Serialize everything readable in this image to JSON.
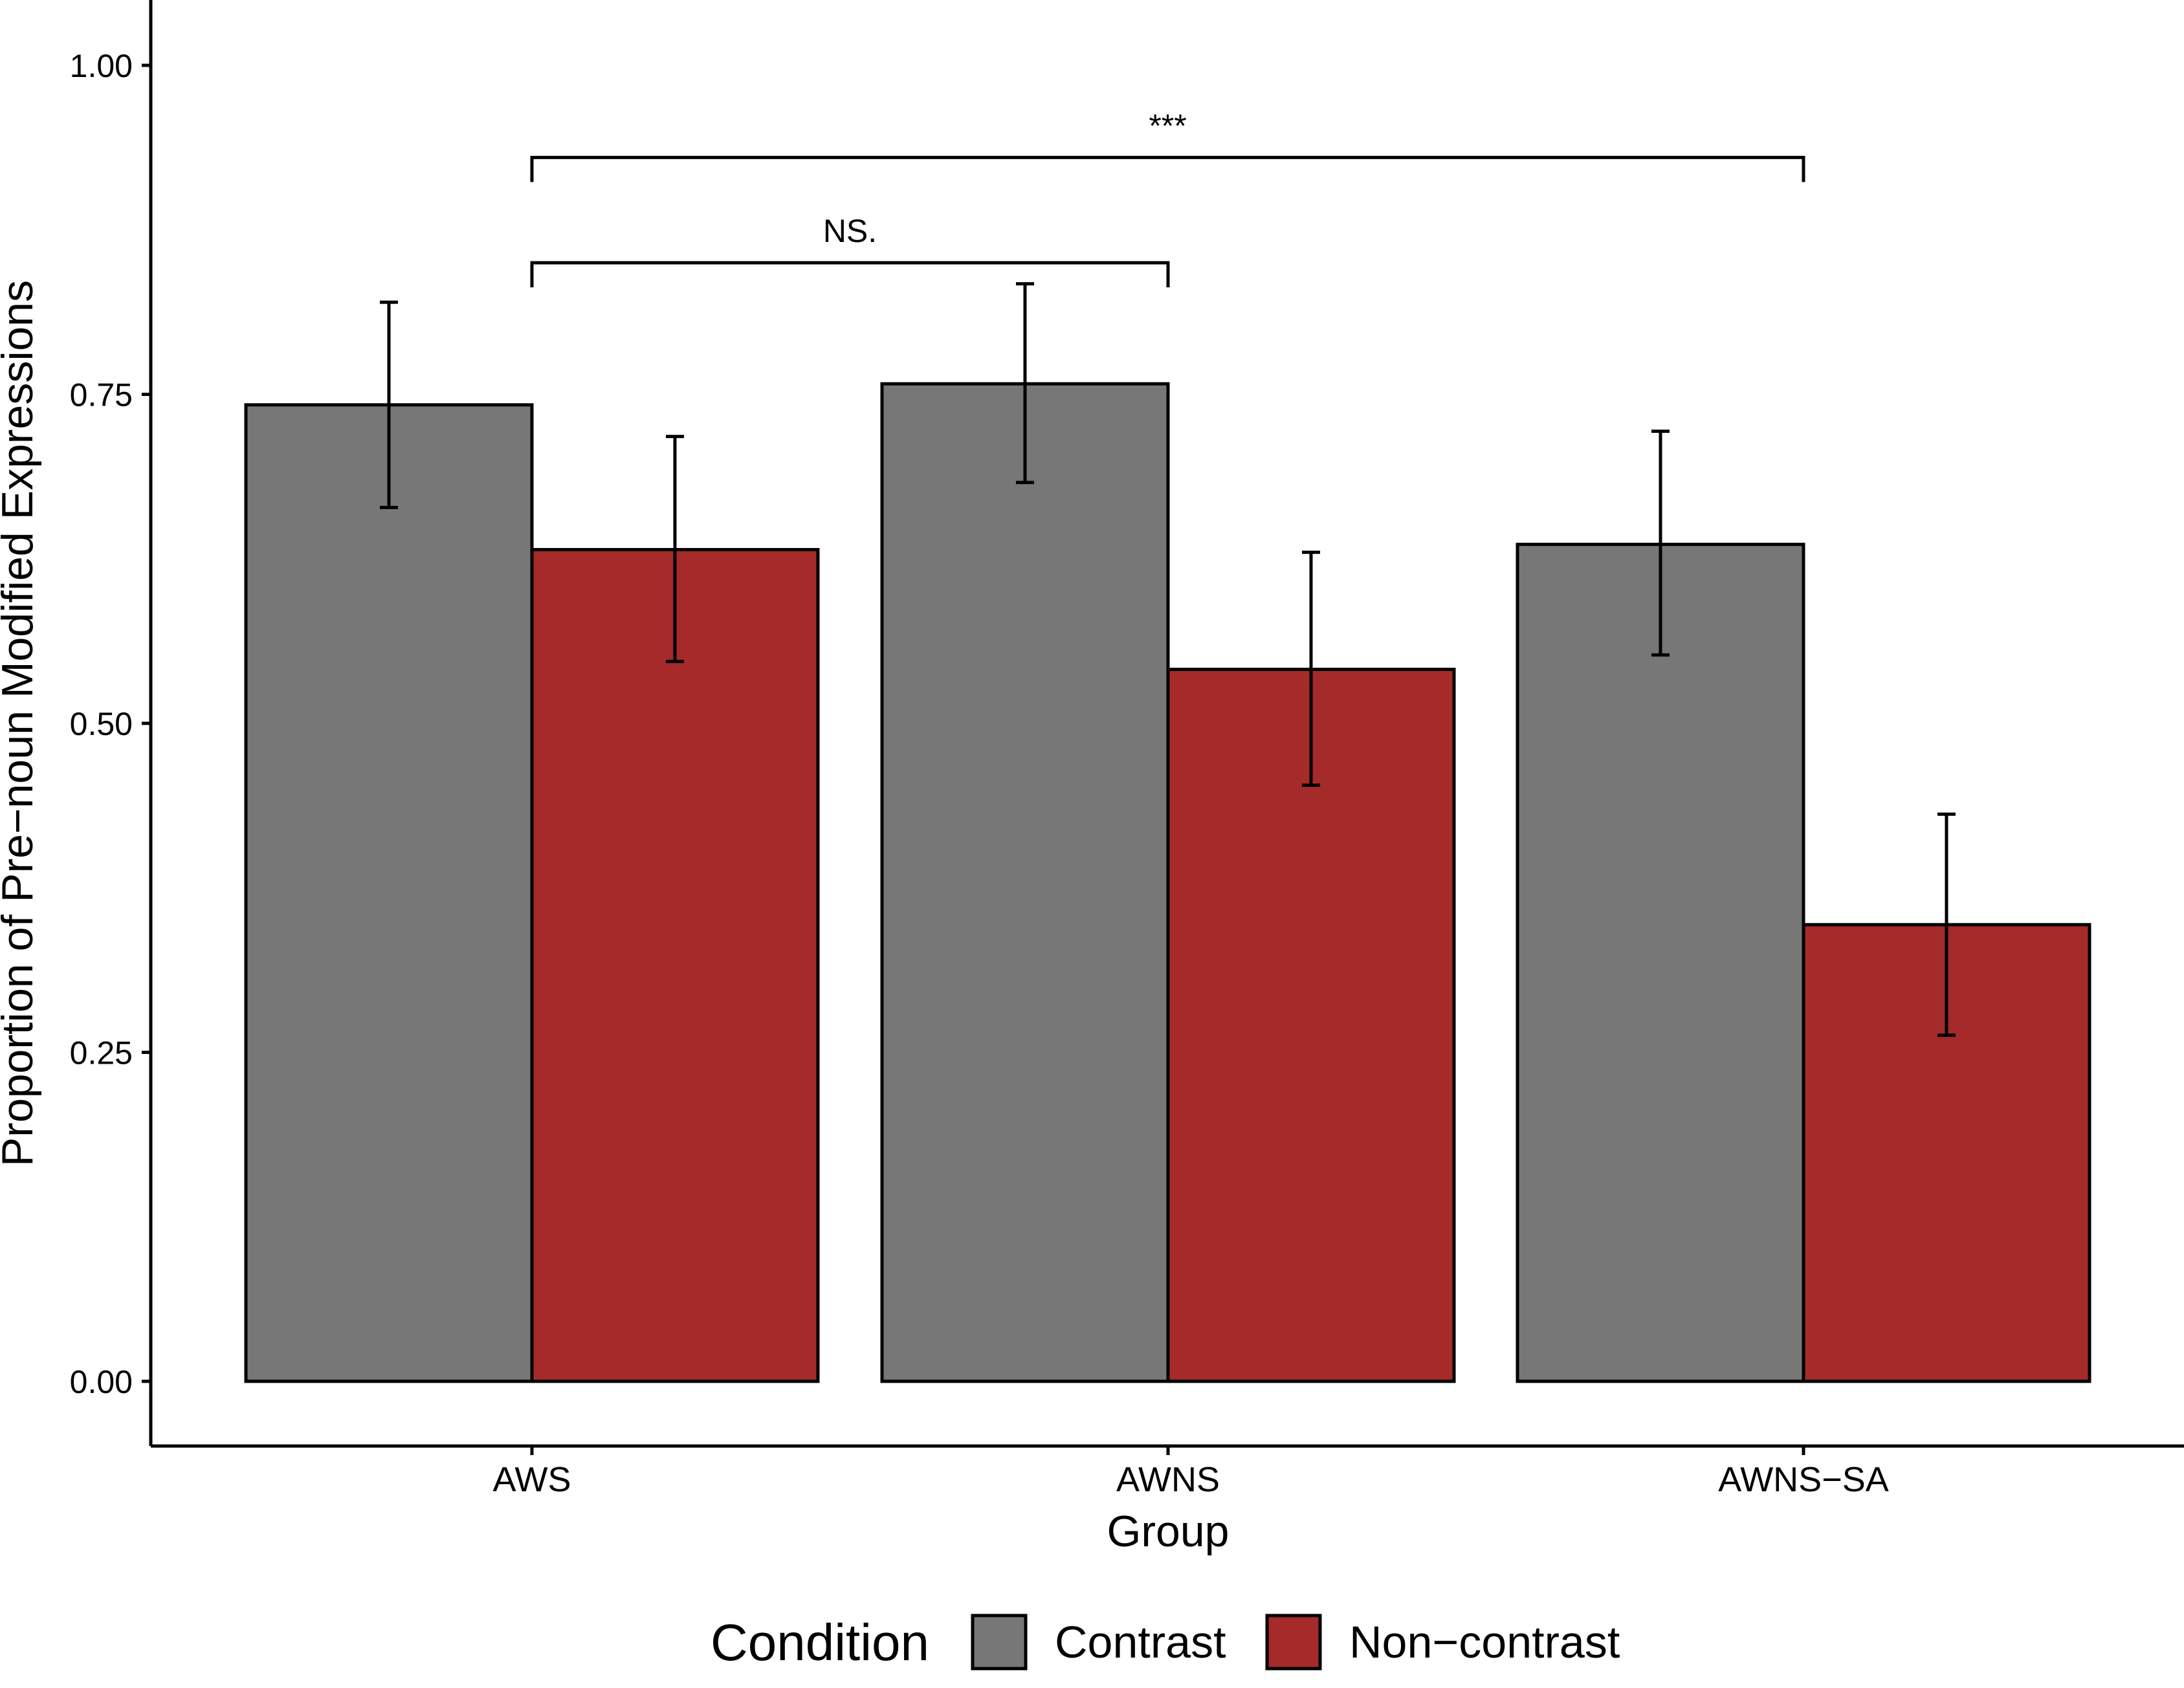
{
  "chart_data": {
    "type": "bar",
    "xlabel": "Group",
    "ylabel": "Proportion of Pre−noun Modified Expressions",
    "ylim": [
      0,
      1.0
    ],
    "yticks": [
      "0.00",
      "0.25",
      "0.50",
      "0.75",
      "1.00"
    ],
    "categories": [
      "AWS",
      "AWNS",
      "AWNS−SA"
    ],
    "series": [
      {
        "name": "Contrast",
        "color": "#777777",
        "values": [
          0.742,
          0.758,
          0.636
        ],
        "err_low": [
          0.664,
          0.683,
          0.552
        ],
        "err_high": [
          0.82,
          0.834,
          0.722
        ]
      },
      {
        "name": "Non−contrast",
        "color": "#a52a2a",
        "values": [
          0.632,
          0.541,
          0.347
        ],
        "err_low": [
          0.547,
          0.453,
          0.263
        ],
        "err_high": [
          0.718,
          0.63,
          0.431
        ]
      }
    ],
    "legend": {
      "title": "Condition",
      "position": "bottom"
    },
    "significance": [
      {
        "label": "NS.",
        "from_category": 0,
        "to_category": 1,
        "level": 0.85
      },
      {
        "label": "***",
        "from_category": 0,
        "to_category": 2,
        "level": 0.93
      }
    ]
  }
}
